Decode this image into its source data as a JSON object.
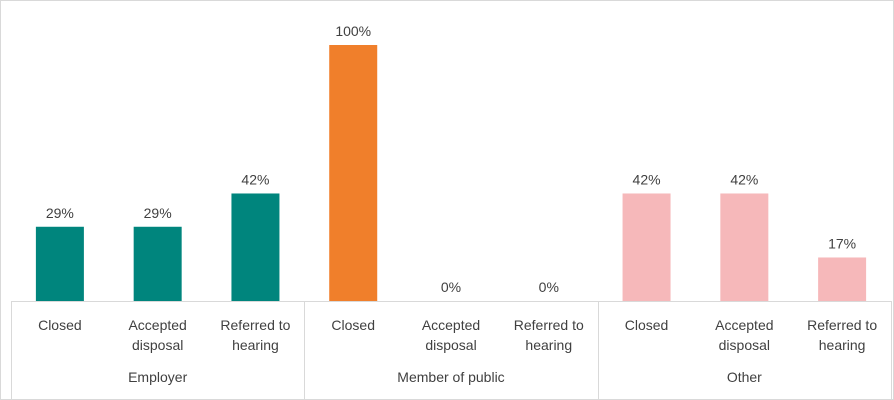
{
  "chart_data": {
    "type": "bar",
    "title": "",
    "xlabel": "",
    "ylabel": "",
    "ylim": [
      0,
      100
    ],
    "grid": false,
    "legend": "none",
    "groups": [
      {
        "name": "Employer",
        "color": "#00857D",
        "bars": [
          {
            "category": [
              "Closed"
            ],
            "value": 29,
            "label": "29%"
          },
          {
            "category": [
              "Accepted",
              "disposal"
            ],
            "value": 29,
            "label": "29%"
          },
          {
            "category": [
              "Referred to",
              "hearing"
            ],
            "value": 42,
            "label": "42%"
          }
        ]
      },
      {
        "name": "Member of public",
        "color": "#F07F2B",
        "bars": [
          {
            "category": [
              "Closed"
            ],
            "value": 100,
            "label": "100%"
          },
          {
            "category": [
              "Accepted",
              "disposal"
            ],
            "value": 0,
            "label": "0%"
          },
          {
            "category": [
              "Referred to",
              "hearing"
            ],
            "value": 0,
            "label": "0%"
          }
        ]
      },
      {
        "name": "Other",
        "color": "#F6B8BA",
        "bars": [
          {
            "category": [
              "Closed"
            ],
            "value": 42,
            "label": "42%"
          },
          {
            "category": [
              "Accepted",
              "disposal"
            ],
            "value": 42,
            "label": "42%"
          },
          {
            "category": [
              "Referred to",
              "hearing"
            ],
            "value": 17,
            "label": "17%"
          }
        ]
      }
    ]
  }
}
